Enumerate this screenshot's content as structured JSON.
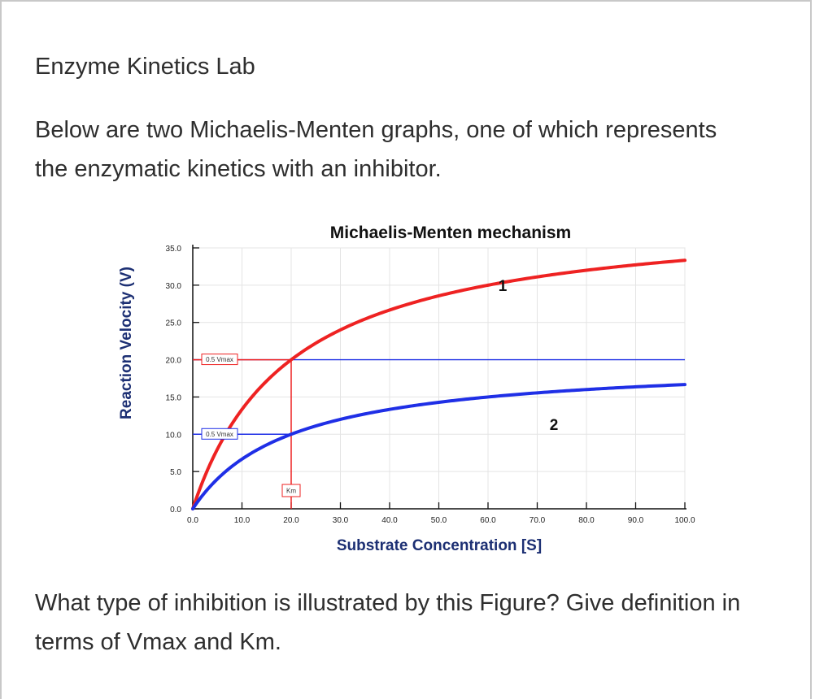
{
  "page": {
    "title": "Enzyme Kinetics Lab",
    "intro": "Below are two Michaelis-Menten graphs, one of which represents the enzymatic kinetics with an inhibitor.",
    "question": "What type of inhibition is illustrated by this Figure? Give definition in terms of Vmax and Km."
  },
  "chart_data": {
    "type": "line",
    "title": "Michaelis-Menten mechanism",
    "xlabel": "Substrate Concentration [S]",
    "ylabel": "Reaction Velocity (V)",
    "xlim": [
      0,
      100
    ],
    "ylim": [
      0,
      35
    ],
    "x_ticks": [
      "0.0",
      "10.0",
      "20.0",
      "30.0",
      "40.0",
      "50.0",
      "60.0",
      "70.0",
      "80.0",
      "90.0",
      "100.0"
    ],
    "y_ticks": [
      "0.0",
      "5.0",
      "10.0",
      "15.0",
      "20.0",
      "25.0",
      "30.0",
      "35.0"
    ],
    "grid": true,
    "series": [
      {
        "name": "1",
        "color": "#ee2222",
        "vmax": 40,
        "km": 20,
        "x": [
          0,
          10,
          20,
          30,
          40,
          50,
          60,
          70,
          80,
          90,
          100
        ],
        "y": [
          0,
          13.3,
          20,
          24,
          26.7,
          28.6,
          30,
          31.1,
          32,
          32.7,
          33.3
        ]
      },
      {
        "name": "2",
        "color": "#1f2fe6",
        "vmax": 20,
        "km": 20,
        "x": [
          0,
          10,
          20,
          30,
          40,
          50,
          60,
          70,
          80,
          90,
          100
        ],
        "y": [
          0,
          6.7,
          10,
          12,
          13.3,
          14.3,
          15,
          15.6,
          16,
          16.4,
          16.7
        ]
      }
    ],
    "annotations": [
      {
        "text": "0.5 Vmax",
        "color": "#ee2222",
        "y": 20
      },
      {
        "text": "0.5 Vmax",
        "color": "#1f2fe6",
        "y": 10
      },
      {
        "text": "Km",
        "color": "#ee2222",
        "x": 20
      }
    ]
  }
}
